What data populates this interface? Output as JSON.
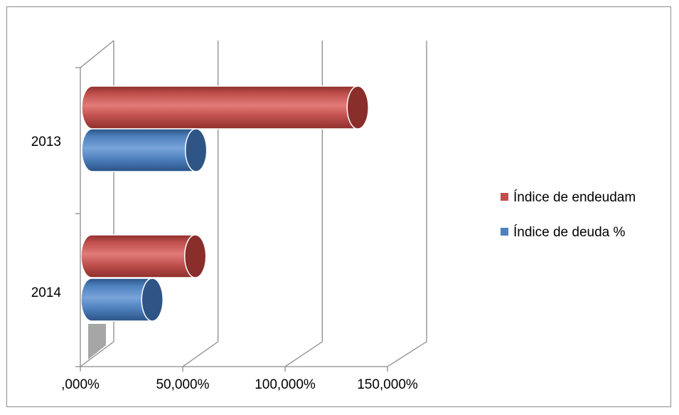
{
  "chart_data": {
    "type": "bar",
    "orientation": "horizontal",
    "style": "3d-cylinder",
    "categories": [
      "2013",
      "2014"
    ],
    "series": [
      {
        "name": "Índice de endeudam",
        "color": "#c0504d",
        "values": [
          140,
          61
        ]
      },
      {
        "name": "Índice de deuda %",
        "color": "#4f81bd",
        "values": [
          61,
          40
        ]
      }
    ],
    "xlim": [
      0,
      150
    ],
    "xticks": [
      0,
      50,
      100,
      150
    ],
    "xtick_labels": [
      ",000%",
      "50,000%",
      "100,000%",
      "150,000%"
    ],
    "grid": true,
    "legend_position": "right"
  }
}
